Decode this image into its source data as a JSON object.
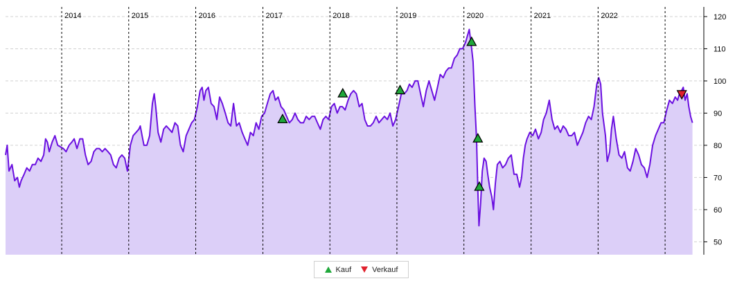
{
  "chart_data": {
    "type": "area",
    "title": "",
    "xlabel": "",
    "ylabel": "",
    "x_range": [
      "2013-03-01",
      "2023-07-31"
    ],
    "ylim": [
      46,
      123
    ],
    "y_ticks": [
      50,
      60,
      70,
      80,
      90,
      100,
      110,
      120
    ],
    "y_axis_side": "right",
    "grid": {
      "horizontal": true,
      "horizontal_style": "dashed",
      "year_separators": true
    },
    "years": [
      {
        "label": "2014",
        "date": "2014-01-01"
      },
      {
        "label": "2015",
        "date": "2015-01-01"
      },
      {
        "label": "2016",
        "date": "2016-01-01"
      },
      {
        "label": "2017",
        "date": "2017-01-01"
      },
      {
        "label": "2018",
        "date": "2018-01-01"
      },
      {
        "label": "2019",
        "date": "2019-01-01"
      },
      {
        "label": "2020",
        "date": "2020-01-01"
      },
      {
        "label": "2021",
        "date": "2021-01-01"
      },
      {
        "label": "2022",
        "date": "2022-01-01"
      },
      {
        "label": "",
        "date": "2023-01-01"
      }
    ],
    "series": [
      {
        "line_color": "#6a0fe0",
        "fill_color": "#dccff8",
        "points": [
          [
            "2013-03-01",
            77
          ],
          [
            "2013-03-10",
            80
          ],
          [
            "2013-03-20",
            72
          ],
          [
            "2013-04-05",
            74
          ],
          [
            "2013-04-20",
            69
          ],
          [
            "2013-05-05",
            70
          ],
          [
            "2013-05-15",
            67
          ],
          [
            "2013-05-25",
            69
          ],
          [
            "2013-06-10",
            71
          ],
          [
            "2013-06-25",
            73
          ],
          [
            "2013-07-10",
            72
          ],
          [
            "2013-07-25",
            74
          ],
          [
            "2013-08-10",
            74
          ],
          [
            "2013-08-25",
            76
          ],
          [
            "2013-09-10",
            75
          ],
          [
            "2013-09-25",
            77
          ],
          [
            "2013-10-05",
            82
          ],
          [
            "2013-10-15",
            81
          ],
          [
            "2013-10-25",
            78
          ],
          [
            "2013-11-10",
            81
          ],
          [
            "2013-11-25",
            83
          ],
          [
            "2013-12-10",
            80
          ],
          [
            "2014-01-10",
            79
          ],
          [
            "2014-01-25",
            78
          ],
          [
            "2014-02-10",
            80
          ],
          [
            "2014-02-25",
            81
          ],
          [
            "2014-03-10",
            82
          ],
          [
            "2014-03-25",
            79
          ],
          [
            "2014-04-10",
            82
          ],
          [
            "2014-04-25",
            82
          ],
          [
            "2014-05-10",
            77
          ],
          [
            "2014-05-25",
            74
          ],
          [
            "2014-06-10",
            75
          ],
          [
            "2014-06-25",
            78
          ],
          [
            "2014-07-10",
            79
          ],
          [
            "2014-07-25",
            79
          ],
          [
            "2014-08-10",
            78
          ],
          [
            "2014-08-25",
            79
          ],
          [
            "2014-09-10",
            78
          ],
          [
            "2014-09-25",
            77
          ],
          [
            "2014-10-10",
            74
          ],
          [
            "2014-10-25",
            73
          ],
          [
            "2014-11-10",
            76
          ],
          [
            "2014-11-25",
            77
          ],
          [
            "2014-12-10",
            76
          ],
          [
            "2014-12-25",
            72
          ],
          [
            "2015-01-10",
            80
          ],
          [
            "2015-01-25",
            83
          ],
          [
            "2015-02-10",
            84
          ],
          [
            "2015-02-25",
            85
          ],
          [
            "2015-03-05",
            86
          ],
          [
            "2015-03-15",
            83
          ],
          [
            "2015-03-25",
            80
          ],
          [
            "2015-04-10",
            80
          ],
          [
            "2015-04-25",
            83
          ],
          [
            "2015-05-10",
            93
          ],
          [
            "2015-05-20",
            96
          ],
          [
            "2015-05-28",
            92
          ],
          [
            "2015-06-10",
            84
          ],
          [
            "2015-06-25",
            81
          ],
          [
            "2015-07-10",
            85
          ],
          [
            "2015-07-25",
            86
          ],
          [
            "2015-08-10",
            85
          ],
          [
            "2015-08-25",
            84
          ],
          [
            "2015-09-10",
            87
          ],
          [
            "2015-09-25",
            86
          ],
          [
            "2015-10-10",
            80
          ],
          [
            "2015-10-25",
            78
          ],
          [
            "2015-11-10",
            83
          ],
          [
            "2015-11-25",
            85
          ],
          [
            "2015-12-10",
            87
          ],
          [
            "2015-12-25",
            88
          ],
          [
            "2016-01-10",
            92
          ],
          [
            "2016-01-25",
            97
          ],
          [
            "2016-02-05",
            98
          ],
          [
            "2016-02-15",
            94
          ],
          [
            "2016-02-25",
            97
          ],
          [
            "2016-03-10",
            98
          ],
          [
            "2016-03-25",
            93
          ],
          [
            "2016-04-10",
            92
          ],
          [
            "2016-04-25",
            88
          ],
          [
            "2016-05-10",
            95
          ],
          [
            "2016-05-25",
            93
          ],
          [
            "2016-06-10",
            90
          ],
          [
            "2016-06-25",
            87
          ],
          [
            "2016-07-10",
            86
          ],
          [
            "2016-07-25",
            93
          ],
          [
            "2016-08-10",
            86
          ],
          [
            "2016-08-25",
            87
          ],
          [
            "2016-09-10",
            84
          ],
          [
            "2016-09-25",
            82
          ],
          [
            "2016-10-10",
            80
          ],
          [
            "2016-10-25",
            84
          ],
          [
            "2016-11-10",
            83
          ],
          [
            "2016-11-25",
            87
          ],
          [
            "2016-12-10",
            85
          ],
          [
            "2016-12-25",
            89
          ],
          [
            "2017-01-10",
            90
          ],
          [
            "2017-01-25",
            93
          ],
          [
            "2017-02-10",
            96
          ],
          [
            "2017-02-25",
            97
          ],
          [
            "2017-03-10",
            94
          ],
          [
            "2017-03-25",
            95
          ],
          [
            "2017-04-10",
            92
          ],
          [
            "2017-04-25",
            91
          ],
          [
            "2017-05-10",
            89
          ],
          [
            "2017-05-25",
            87
          ],
          [
            "2017-06-10",
            88
          ],
          [
            "2017-06-25",
            90
          ],
          [
            "2017-07-10",
            88
          ],
          [
            "2017-07-25",
            87
          ],
          [
            "2017-08-10",
            87
          ],
          [
            "2017-08-25",
            89
          ],
          [
            "2017-09-10",
            88
          ],
          [
            "2017-09-25",
            89
          ],
          [
            "2017-10-10",
            89
          ],
          [
            "2017-10-25",
            87
          ],
          [
            "2017-11-10",
            85
          ],
          [
            "2017-11-25",
            88
          ],
          [
            "2017-12-10",
            89
          ],
          [
            "2017-12-25",
            88
          ],
          [
            "2018-01-10",
            92
          ],
          [
            "2018-01-25",
            93
          ],
          [
            "2018-02-10",
            90
          ],
          [
            "2018-02-25",
            92
          ],
          [
            "2018-03-10",
            92
          ],
          [
            "2018-03-25",
            91
          ],
          [
            "2018-04-10",
            94
          ],
          [
            "2018-04-25",
            96
          ],
          [
            "2018-05-10",
            97
          ],
          [
            "2018-05-25",
            96
          ],
          [
            "2018-06-10",
            92
          ],
          [
            "2018-06-25",
            93
          ],
          [
            "2018-07-10",
            88
          ],
          [
            "2018-07-25",
            86
          ],
          [
            "2018-08-10",
            86
          ],
          [
            "2018-08-25",
            87
          ],
          [
            "2018-09-10",
            89
          ],
          [
            "2018-09-25",
            87
          ],
          [
            "2018-10-10",
            88
          ],
          [
            "2018-10-25",
            89
          ],
          [
            "2018-11-10",
            88
          ],
          [
            "2018-11-25",
            90
          ],
          [
            "2018-12-10",
            86
          ],
          [
            "2018-12-25",
            88
          ],
          [
            "2019-01-10",
            92
          ],
          [
            "2019-01-25",
            96
          ],
          [
            "2019-02-10",
            96
          ],
          [
            "2019-02-25",
            97
          ],
          [
            "2019-03-10",
            99
          ],
          [
            "2019-03-25",
            98
          ],
          [
            "2019-04-10",
            100
          ],
          [
            "2019-04-25",
            100
          ],
          [
            "2019-05-10",
            96
          ],
          [
            "2019-05-25",
            92
          ],
          [
            "2019-06-10",
            97
          ],
          [
            "2019-06-25",
            100
          ],
          [
            "2019-07-10",
            97
          ],
          [
            "2019-07-25",
            94
          ],
          [
            "2019-08-10",
            98
          ],
          [
            "2019-08-25",
            102
          ],
          [
            "2019-09-10",
            101
          ],
          [
            "2019-09-25",
            103
          ],
          [
            "2019-10-10",
            104
          ],
          [
            "2019-10-25",
            104
          ],
          [
            "2019-11-10",
            107
          ],
          [
            "2019-11-25",
            108
          ],
          [
            "2019-12-10",
            110
          ],
          [
            "2019-12-25",
            110
          ],
          [
            "2020-01-10",
            112
          ],
          [
            "2020-01-20",
            114
          ],
          [
            "2020-01-30",
            116
          ],
          [
            "2020-02-10",
            111
          ],
          [
            "2020-02-20",
            106
          ],
          [
            "2020-03-01",
            92
          ],
          [
            "2020-03-10",
            82
          ],
          [
            "2020-03-17",
            66
          ],
          [
            "2020-03-23",
            55
          ],
          [
            "2020-04-01",
            62
          ],
          [
            "2020-04-10",
            72
          ],
          [
            "2020-04-20",
            76
          ],
          [
            "2020-05-01",
            75
          ],
          [
            "2020-05-10",
            71
          ],
          [
            "2020-05-20",
            67
          ],
          [
            "2020-06-01",
            64
          ],
          [
            "2020-06-10",
            60
          ],
          [
            "2020-06-20",
            68
          ],
          [
            "2020-07-01",
            74
          ],
          [
            "2020-07-15",
            75
          ],
          [
            "2020-07-30",
            73
          ],
          [
            "2020-08-15",
            74
          ],
          [
            "2020-08-30",
            76
          ],
          [
            "2020-09-15",
            77
          ],
          [
            "2020-09-30",
            71
          ],
          [
            "2020-10-15",
            71
          ],
          [
            "2020-10-30",
            67
          ],
          [
            "2020-11-10",
            70
          ],
          [
            "2020-11-20",
            76
          ],
          [
            "2020-11-30",
            80
          ],
          [
            "2020-12-10",
            82
          ],
          [
            "2020-12-25",
            84
          ],
          [
            "2021-01-10",
            83
          ],
          [
            "2021-01-25",
            85
          ],
          [
            "2021-02-10",
            82
          ],
          [
            "2021-02-25",
            84
          ],
          [
            "2021-03-10",
            88
          ],
          [
            "2021-03-25",
            90
          ],
          [
            "2021-04-10",
            94
          ],
          [
            "2021-04-25",
            88
          ],
          [
            "2021-05-10",
            85
          ],
          [
            "2021-05-25",
            86
          ],
          [
            "2021-06-10",
            84
          ],
          [
            "2021-06-25",
            86
          ],
          [
            "2021-07-10",
            85
          ],
          [
            "2021-07-25",
            83
          ],
          [
            "2021-08-10",
            83
          ],
          [
            "2021-08-25",
            84
          ],
          [
            "2021-09-10",
            80
          ],
          [
            "2021-09-25",
            82
          ],
          [
            "2021-10-10",
            84
          ],
          [
            "2021-10-25",
            87
          ],
          [
            "2021-11-10",
            89
          ],
          [
            "2021-11-25",
            88
          ],
          [
            "2021-12-10",
            92
          ],
          [
            "2021-12-25",
            99
          ],
          [
            "2022-01-05",
            101
          ],
          [
            "2022-01-15",
            99
          ],
          [
            "2022-01-25",
            90
          ],
          [
            "2022-02-10",
            83
          ],
          [
            "2022-02-20",
            75
          ],
          [
            "2022-03-05",
            78
          ],
          [
            "2022-03-15",
            85
          ],
          [
            "2022-03-25",
            89
          ],
          [
            "2022-04-10",
            82
          ],
          [
            "2022-04-25",
            77
          ],
          [
            "2022-05-10",
            76
          ],
          [
            "2022-05-25",
            78
          ],
          [
            "2022-06-10",
            73
          ],
          [
            "2022-06-25",
            72
          ],
          [
            "2022-07-10",
            75
          ],
          [
            "2022-07-25",
            79
          ],
          [
            "2022-08-10",
            77
          ],
          [
            "2022-08-25",
            74
          ],
          [
            "2022-09-10",
            73
          ],
          [
            "2022-09-25",
            70
          ],
          [
            "2022-10-10",
            74
          ],
          [
            "2022-10-25",
            80
          ],
          [
            "2022-11-10",
            83
          ],
          [
            "2022-11-25",
            85
          ],
          [
            "2022-12-10",
            87
          ],
          [
            "2022-12-25",
            87
          ],
          [
            "2023-01-10",
            91
          ],
          [
            "2023-01-25",
            94
          ],
          [
            "2023-02-10",
            93
          ],
          [
            "2023-02-25",
            95
          ],
          [
            "2023-03-10",
            94
          ],
          [
            "2023-03-20",
            96
          ],
          [
            "2023-04-01",
            97
          ],
          [
            "2023-04-10",
            98
          ],
          [
            "2023-04-20",
            94
          ],
          [
            "2023-05-01",
            96
          ],
          [
            "2023-05-10",
            92
          ],
          [
            "2023-05-20",
            89
          ],
          [
            "2023-05-30",
            87
          ]
        ]
      }
    ],
    "markers": [
      {
        "type": "Kauf",
        "date": "2017-04-18",
        "value": 88
      },
      {
        "type": "Kauf",
        "date": "2018-03-12",
        "value": 96
      },
      {
        "type": "Kauf",
        "date": "2019-01-18",
        "value": 97
      },
      {
        "type": "Kauf",
        "date": "2020-02-12",
        "value": 112
      },
      {
        "type": "Kauf",
        "date": "2020-03-17",
        "value": 82
      },
      {
        "type": "Kauf",
        "date": "2020-03-25",
        "value": 67
      },
      {
        "type": "Verkauf",
        "date": "2023-04-02",
        "value": 96
      }
    ],
    "legend": {
      "position": "bottom-center",
      "entries": [
        {
          "key": "buy",
          "label": "Kauf",
          "color": "#1fa83a",
          "symbol": "triangle-up"
        },
        {
          "key": "sell",
          "label": "Verkauf",
          "color": "#e0212d",
          "symbol": "triangle-down"
        }
      ]
    }
  }
}
